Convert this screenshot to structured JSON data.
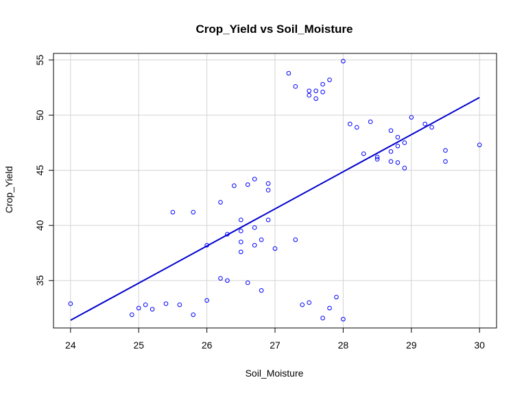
{
  "chart_data": {
    "type": "scatter",
    "title": "Crop_Yield vs Soil_Moisture",
    "xlabel": "Soil_Moisture",
    "ylabel": "Crop_Yield",
    "xlim": [
      23.75,
      30.25
    ],
    "ylim": [
      30.7,
      55.6
    ],
    "xticks": [
      "24",
      "25",
      "26",
      "27",
      "28",
      "29",
      "30"
    ],
    "yticks": [
      "35",
      "40",
      "45",
      "50",
      "55"
    ],
    "grid": true,
    "colors": {
      "points": "#0000ff",
      "fit_line": "#0000cd",
      "grid": "#d3d3d3",
      "frame": "#000000"
    },
    "points": [
      {
        "x": 24.0,
        "y": 32.9
      },
      {
        "x": 24.9,
        "y": 31.9
      },
      {
        "x": 25.0,
        "y": 32.5
      },
      {
        "x": 25.1,
        "y": 32.8
      },
      {
        "x": 25.2,
        "y": 32.4
      },
      {
        "x": 25.4,
        "y": 32.9
      },
      {
        "x": 25.5,
        "y": 41.2
      },
      {
        "x": 25.6,
        "y": 32.8
      },
      {
        "x": 25.8,
        "y": 31.9
      },
      {
        "x": 25.8,
        "y": 41.2
      },
      {
        "x": 26.0,
        "y": 33.2
      },
      {
        "x": 26.0,
        "y": 38.2
      },
      {
        "x": 26.2,
        "y": 35.2
      },
      {
        "x": 26.2,
        "y": 42.1
      },
      {
        "x": 26.3,
        "y": 35.0
      },
      {
        "x": 26.3,
        "y": 39.2
      },
      {
        "x": 26.4,
        "y": 43.6
      },
      {
        "x": 26.5,
        "y": 37.6
      },
      {
        "x": 26.5,
        "y": 38.5
      },
      {
        "x": 26.5,
        "y": 39.5
      },
      {
        "x": 26.5,
        "y": 40.5
      },
      {
        "x": 26.6,
        "y": 34.8
      },
      {
        "x": 26.6,
        "y": 43.7
      },
      {
        "x": 26.7,
        "y": 38.2
      },
      {
        "x": 26.7,
        "y": 39.8
      },
      {
        "x": 26.7,
        "y": 44.2
      },
      {
        "x": 26.8,
        "y": 34.1
      },
      {
        "x": 26.8,
        "y": 38.7
      },
      {
        "x": 26.9,
        "y": 40.5
      },
      {
        "x": 26.9,
        "y": 43.2
      },
      {
        "x": 26.9,
        "y": 43.8
      },
      {
        "x": 27.0,
        "y": 37.9
      },
      {
        "x": 27.2,
        "y": 53.8
      },
      {
        "x": 27.3,
        "y": 38.7
      },
      {
        "x": 27.3,
        "y": 52.6
      },
      {
        "x": 27.4,
        "y": 32.8
      },
      {
        "x": 27.5,
        "y": 33.0
      },
      {
        "x": 27.5,
        "y": 51.8
      },
      {
        "x": 27.5,
        "y": 52.2
      },
      {
        "x": 27.6,
        "y": 51.5
      },
      {
        "x": 27.6,
        "y": 52.2
      },
      {
        "x": 27.7,
        "y": 31.6
      },
      {
        "x": 27.7,
        "y": 52.1
      },
      {
        "x": 27.7,
        "y": 52.8
      },
      {
        "x": 27.8,
        "y": 32.5
      },
      {
        "x": 27.8,
        "y": 53.2
      },
      {
        "x": 27.9,
        "y": 33.5
      },
      {
        "x": 28.0,
        "y": 31.5
      },
      {
        "x": 28.0,
        "y": 54.9
      },
      {
        "x": 28.1,
        "y": 49.2
      },
      {
        "x": 28.2,
        "y": 48.9
      },
      {
        "x": 28.3,
        "y": 46.5
      },
      {
        "x": 28.4,
        "y": 49.4
      },
      {
        "x": 28.5,
        "y": 46.0
      },
      {
        "x": 28.5,
        "y": 46.2
      },
      {
        "x": 28.7,
        "y": 45.8
      },
      {
        "x": 28.7,
        "y": 46.7
      },
      {
        "x": 28.7,
        "y": 48.6
      },
      {
        "x": 28.8,
        "y": 45.7
      },
      {
        "x": 28.8,
        "y": 47.2
      },
      {
        "x": 28.8,
        "y": 48.0
      },
      {
        "x": 28.9,
        "y": 45.2
      },
      {
        "x": 28.9,
        "y": 47.5
      },
      {
        "x": 29.0,
        "y": 49.8
      },
      {
        "x": 29.2,
        "y": 49.2
      },
      {
        "x": 29.3,
        "y": 48.9
      },
      {
        "x": 29.5,
        "y": 45.8
      },
      {
        "x": 29.5,
        "y": 46.8
      },
      {
        "x": 30.0,
        "y": 47.3
      }
    ],
    "fit_line": {
      "x": [
        24.0,
        30.0
      ],
      "y": [
        31.4,
        51.6
      ]
    }
  }
}
